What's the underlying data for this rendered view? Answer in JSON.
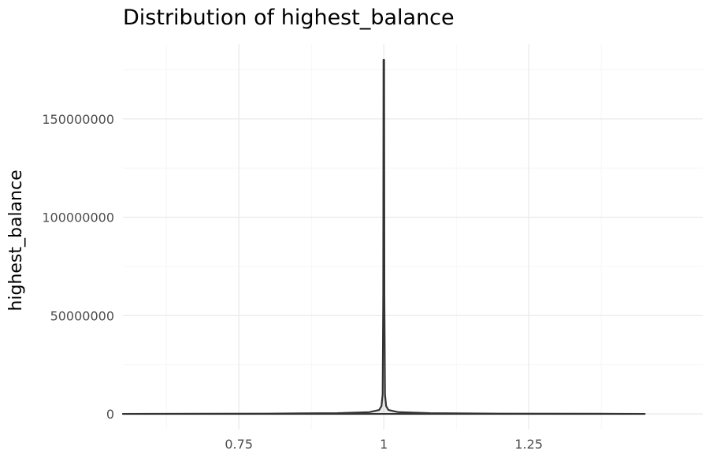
{
  "chart_data": {
    "type": "violin",
    "title": "Distribution of highest_balance",
    "xlabel": "",
    "ylabel": "highest_balance",
    "x_ticks": [
      0.75,
      1,
      1.25
    ],
    "x_tick_labels": [
      "0.75",
      "1",
      "1.25"
    ],
    "y_ticks": [
      0,
      50000000,
      100000000,
      150000000
    ],
    "y_tick_labels": [
      "0",
      "50000000",
      "100000000",
      "150000000"
    ],
    "xlim": [
      0.55,
      1.55
    ],
    "ylim": [
      -8000000,
      188000000
    ],
    "grid": true,
    "series": [
      {
        "x": 1,
        "y_min": 0,
        "y_max": 180000000,
        "density_profile": [
          {
            "y": 0,
            "half_width": 0.45
          },
          {
            "y": 50000,
            "half_width": 0.4
          },
          {
            "y": 150000,
            "half_width": 0.2
          },
          {
            "y": 400000,
            "half_width": 0.08
          },
          {
            "y": 900000,
            "half_width": 0.025
          },
          {
            "y": 2000000,
            "half_width": 0.008
          },
          {
            "y": 4000000,
            "half_width": 0.004
          },
          {
            "y": 10000000,
            "half_width": 0.002
          },
          {
            "y": 60000000,
            "half_width": 0.001
          },
          {
            "y": 180000000,
            "half_width": 0.0005
          }
        ]
      }
    ]
  }
}
